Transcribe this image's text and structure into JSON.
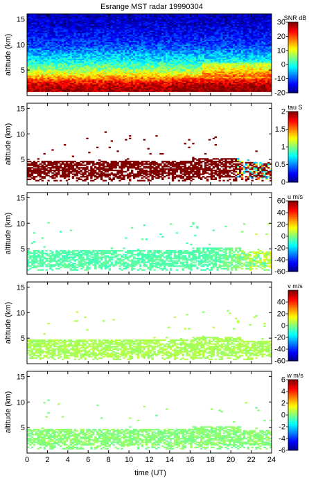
{
  "figure": {
    "title": "Esrange MST radar 19990304",
    "xlabel": "time (UT)"
  },
  "chart_data": [
    {
      "type": "heatmap",
      "panel": 1,
      "title": "Esrange MST radar 19990304",
      "quantity": "SNR",
      "colorbar_label": "SNR dB",
      "ylabel": "altitude (km)",
      "xlabel": "",
      "xlim": [
        0,
        24
      ],
      "ylim": [
        0,
        16
      ],
      "yticks": [
        5,
        10,
        15
      ],
      "clim": [
        -20,
        30
      ],
      "colorbar_ticks": [
        -20,
        -10,
        0,
        10,
        20,
        30
      ],
      "description_of_field": "SNR decreases with altitude: dark red (~25-30 dB) near 1-3 km, yellow/green (~5-15 dB) near 4-6 km, cyan ~7-9 km, blue (~-15 dB) above 10 km; elevated echo layer near 5-6 km around 18-24 UT",
      "profile": [
        {
          "alt": 1,
          "snr": 28
        },
        {
          "alt": 2,
          "snr": 26
        },
        {
          "alt": 3,
          "snr": 20
        },
        {
          "alt": 4,
          "snr": 12
        },
        {
          "alt": 5,
          "snr": 6
        },
        {
          "alt": 6,
          "snr": 2
        },
        {
          "alt": 7,
          "snr": -2
        },
        {
          "alt": 8,
          "snr": -5
        },
        {
          "alt": 9,
          "snr": -8
        },
        {
          "alt": 10,
          "snr": -11
        },
        {
          "alt": 12,
          "snr": -14
        },
        {
          "alt": 14,
          "snr": -16
        },
        {
          "alt": 16,
          "snr": -17
        }
      ]
    },
    {
      "type": "heatmap",
      "panel": 2,
      "quantity": "tau",
      "colorbar_label": "tau S",
      "ylabel": "altitude (km)",
      "xlabel": "",
      "xlim": [
        0,
        24
      ],
      "ylim": [
        0,
        16
      ],
      "yticks": [
        5,
        10,
        15
      ],
      "clim": [
        0,
        2
      ],
      "colorbar_ticks": [
        0,
        0.5,
        1,
        1.5,
        2
      ],
      "description_of_field": "Mostly saturated (~2 s, dark red) valid data from 1-5 km; sparse points up to ~10 km; mixed lower values near 21-24 UT"
    },
    {
      "type": "heatmap",
      "panel": 3,
      "quantity": "u",
      "colorbar_label": "u m/s",
      "ylabel": "altitude (km)",
      "xlabel": "",
      "xlim": [
        0,
        24
      ],
      "ylim": [
        0,
        16
      ],
      "yticks": [
        5,
        10,
        15
      ],
      "clim": [
        -60,
        60
      ],
      "colorbar_ticks": [
        -60,
        -40,
        -20,
        0,
        20,
        40,
        60
      ],
      "description_of_field": "Valid data 1-5 km; u about -10 to 0 m/s (light green) most of the day, increasing to ~10-20 m/s (yellow) near 20-24 UT"
    },
    {
      "type": "heatmap",
      "panel": 4,
      "quantity": "v",
      "colorbar_label": "v m/s",
      "ylabel": "altitude (km)",
      "xlabel": "",
      "xlim": [
        0,
        24
      ],
      "ylim": [
        0,
        16
      ],
      "yticks": [
        5,
        10,
        15
      ],
      "clim": [
        -60,
        60
      ],
      "colorbar_ticks": [
        -60,
        -40,
        -20,
        0,
        20,
        40
      ],
      "description_of_field": "Valid data 1-5 km; v near 0 to 10 m/s (light yellow-green) throughout"
    },
    {
      "type": "heatmap",
      "panel": 5,
      "quantity": "w",
      "colorbar_label": "w m/s",
      "ylabel": "altitude (km)",
      "xlabel": "time (UT)",
      "xlim": [
        0,
        24
      ],
      "ylim": [
        0,
        16
      ],
      "xticks": [
        0,
        2,
        4,
        6,
        8,
        10,
        12,
        14,
        16,
        18,
        20,
        22,
        24
      ],
      "yticks": [
        5,
        10,
        15
      ],
      "clim": [
        -6,
        6
      ],
      "colorbar_ticks": [
        -6,
        -4,
        -2,
        0,
        2,
        4,
        6
      ],
      "description_of_field": "Valid data 1-5 km; w near 0 m/s (light green) throughout"
    }
  ]
}
